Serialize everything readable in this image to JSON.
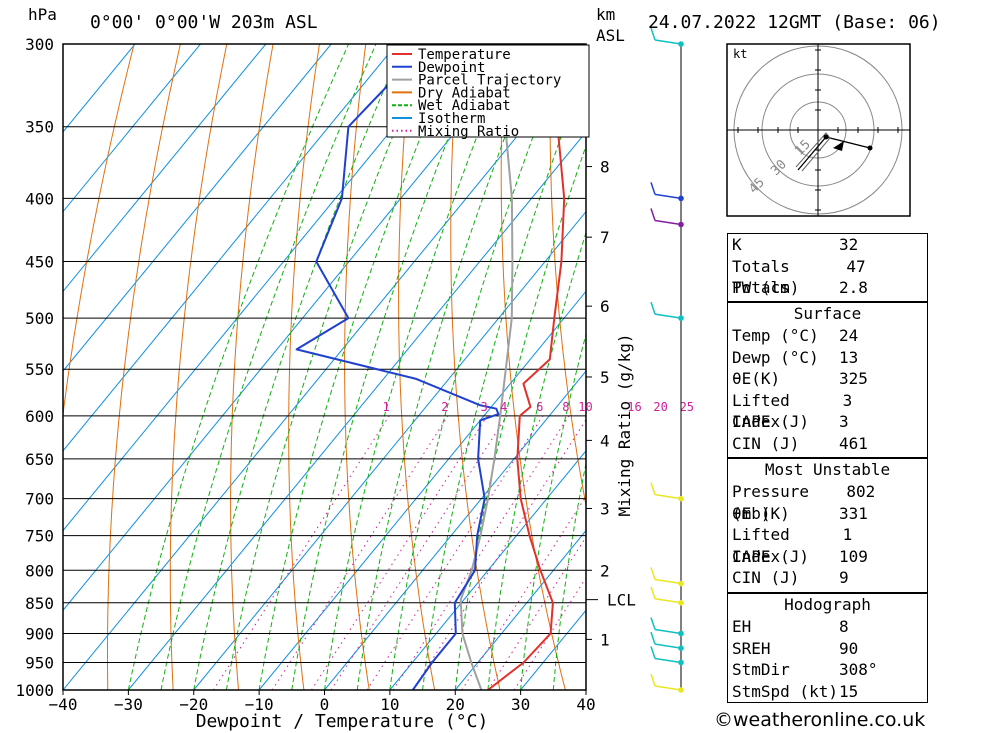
{
  "header": {
    "hpa_label": "hPa",
    "location": "0°00' 0°00'W 203m ASL",
    "km_label": "km",
    "asl_label": "ASL",
    "datetime": "24.07.2022 12GMT (Base: 06)"
  },
  "chart_data": {
    "type": "skew-t",
    "xlabel": "Dewpoint / Temperature (°C)",
    "ylabel_right": "Mixing Ratio (g/kg)",
    "x_ticks": [
      "−40",
      "−30",
      "−20",
      "−10",
      "0",
      "10",
      "20",
      "30",
      "40"
    ],
    "x_tick_values": [
      -40,
      -30,
      -20,
      -10,
      0,
      10,
      20,
      30,
      40
    ],
    "pressure_levels": [
      300,
      350,
      400,
      450,
      500,
      550,
      600,
      650,
      700,
      750,
      800,
      850,
      900,
      950,
      1000
    ],
    "km_ticks": [
      {
        "label": "1",
        "p": 910
      },
      {
        "label": "2",
        "p": 800
      },
      {
        "label": "3",
        "p": 713
      },
      {
        "label": "4",
        "p": 628
      },
      {
        "label": "5",
        "p": 558
      },
      {
        "label": "6",
        "p": 489
      },
      {
        "label": "7",
        "p": 430
      },
      {
        "label": "8",
        "p": 377
      }
    ],
    "lcl": {
      "label": "LCL",
      "p": 845
    },
    "mixing_ratio_labels": [
      "1",
      "2",
      "3",
      "4",
      "6",
      "8",
      "10",
      "16",
      "20",
      "25"
    ],
    "mixing_ratio_values": [
      1,
      2,
      3,
      4,
      6,
      8,
      10,
      16,
      20,
      25
    ],
    "legend": [
      {
        "name": "Temperature",
        "color": "#e0312d",
        "style": "solid"
      },
      {
        "name": "Dewpoint",
        "color": "#2040d0",
        "style": "solid"
      },
      {
        "name": "Parcel Trajectory",
        "color": "#a0a0a0",
        "style": "solid"
      },
      {
        "name": "Dry Adiabat",
        "color": "#e07010",
        "style": "solid"
      },
      {
        "name": "Wet Adiabat",
        "color": "#10b010",
        "style": "dashed"
      },
      {
        "name": "Isotherm",
        "color": "#1090e0",
        "style": "solid"
      },
      {
        "name": "Mixing Ratio",
        "color": "#d0209a",
        "style": "dotted"
      }
    ],
    "temperature": [
      {
        "p": 1000,
        "t": 25
      },
      {
        "p": 950,
        "t": 27
      },
      {
        "p": 900,
        "t": 27.5
      },
      {
        "p": 850,
        "t": 24
      },
      {
        "p": 800,
        "t": 18
      },
      {
        "p": 750,
        "t": 12
      },
      {
        "p": 700,
        "t": 6
      },
      {
        "p": 650,
        "t": 0.5
      },
      {
        "p": 600,
        "t": -4.5
      },
      {
        "p": 590,
        "t": -4
      },
      {
        "p": 565,
        "t": -8
      },
      {
        "p": 540,
        "t": -7
      },
      {
        "p": 500,
        "t": -11.5
      },
      {
        "p": 450,
        "t": -17.5
      },
      {
        "p": 400,
        "t": -25
      },
      {
        "p": 350,
        "t": -35
      },
      {
        "p": 300,
        "t": -45
      }
    ],
    "dewpoint": [
      {
        "p": 1000,
        "t": 13.5
      },
      {
        "p": 950,
        "t": 13
      },
      {
        "p": 900,
        "t": 13
      },
      {
        "p": 850,
        "t": 9
      },
      {
        "p": 800,
        "t": 8
      },
      {
        "p": 750,
        "t": 4
      },
      {
        "p": 700,
        "t": 0.5
      },
      {
        "p": 650,
        "t": -5.5
      },
      {
        "p": 605,
        "t": -10
      },
      {
        "p": 598,
        "t": -8
      },
      {
        "p": 592,
        "t": -9
      },
      {
        "p": 588,
        "t": -12
      },
      {
        "p": 560,
        "t": -25
      },
      {
        "p": 530,
        "t": -47
      },
      {
        "p": 500,
        "t": -43
      },
      {
        "p": 450,
        "t": -55
      },
      {
        "p": 400,
        "t": -59
      },
      {
        "p": 350,
        "t": -67
      },
      {
        "p": 320,
        "t": -66
      },
      {
        "p": 300,
        "t": -63
      }
    ],
    "parcel": [
      {
        "p": 1000,
        "t": 24
      },
      {
        "p": 950,
        "t": 19
      },
      {
        "p": 900,
        "t": 14
      },
      {
        "p": 845,
        "t": 9.5
      },
      {
        "p": 800,
        "t": 7.5
      },
      {
        "p": 750,
        "t": 4.5
      },
      {
        "p": 700,
        "t": 1
      },
      {
        "p": 650,
        "t": -3
      },
      {
        "p": 600,
        "t": -7.5
      },
      {
        "p": 550,
        "t": -12.5
      },
      {
        "p": 500,
        "t": -18
      },
      {
        "p": 450,
        "t": -25
      },
      {
        "p": 400,
        "t": -33
      },
      {
        "p": 350,
        "t": -43
      },
      {
        "p": 300,
        "t": -54
      }
    ],
    "wind_barbs": [
      {
        "p": 1000,
        "color": "#e8e820"
      },
      {
        "p": 950,
        "color": "#10c0c0"
      },
      {
        "p": 925,
        "color": "#10c0c0"
      },
      {
        "p": 900,
        "color": "#10c0c0"
      },
      {
        "p": 850,
        "color": "#e8e820"
      },
      {
        "p": 820,
        "color": "#e8e820"
      },
      {
        "p": 700,
        "color": "#e8e820"
      },
      {
        "p": 500,
        "color": "#10c0c0"
      },
      {
        "p": 420,
        "color": "#8020a0"
      },
      {
        "p": 400,
        "color": "#2040d0"
      },
      {
        "p": 300,
        "color": "#10c0c0"
      }
    ]
  },
  "hodograph": {
    "unit": "kt",
    "ring_labels": [
      "15",
      "30",
      "45"
    ]
  },
  "indices": {
    "top": [
      {
        "label": "K",
        "value": "32"
      },
      {
        "label": "Totals Totals",
        "value": "47"
      },
      {
        "label": "PW (cm)",
        "value": "2.8"
      }
    ],
    "surface_title": "Surface",
    "surface": [
      {
        "label": "Temp (°C)",
        "value": "24"
      },
      {
        "label": "Dewp (°C)",
        "value": "13"
      },
      {
        "label": "θE(K)",
        "value": "325"
      },
      {
        "label": "Lifted Index",
        "value": "3"
      },
      {
        "label": "CAPE (J)",
        "value": "3"
      },
      {
        "label": "CIN (J)",
        "value": "461"
      }
    ],
    "unstable_title": "Most Unstable",
    "unstable": [
      {
        "label": "Pressure (mb)",
        "value": "802"
      },
      {
        "label": "θE (K)",
        "value": "331"
      },
      {
        "label": "Lifted Index",
        "value": "1"
      },
      {
        "label": "CAPE (J)",
        "value": "109"
      },
      {
        "label": "CIN (J)",
        "value": "9"
      }
    ],
    "hodo_title": "Hodograph",
    "hodo": [
      {
        "label": "EH",
        "value": "8"
      },
      {
        "label": "SREH",
        "value": "90"
      },
      {
        "label": "StmDir",
        "value": "308°"
      },
      {
        "label": "StmSpd (kt)",
        "value": "15"
      }
    ]
  },
  "footer": {
    "copyright": "©weatheronline.co.uk"
  }
}
